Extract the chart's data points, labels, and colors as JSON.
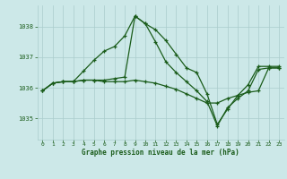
{
  "bg_color": "#cce8e8",
  "grid_color": "#aacccc",
  "line_color": "#1a5c1a",
  "title": "Graphe pression niveau de la mer (hPa)",
  "title_color": "#1a5c1a",
  "ylim": [
    1034.3,
    1038.7
  ],
  "yticks": [
    1035,
    1036,
    1037,
    1038
  ],
  "xticks": [
    0,
    1,
    2,
    3,
    4,
    5,
    6,
    7,
    8,
    9,
    10,
    11,
    12,
    13,
    14,
    15,
    16,
    17,
    18,
    19,
    20,
    21,
    22,
    23
  ],
  "series1_x": [
    0,
    1,
    2,
    3,
    4,
    5,
    6,
    7,
    8,
    9,
    10,
    11,
    12,
    13,
    14,
    15,
    16,
    17,
    18,
    19,
    20,
    21,
    22,
    23
  ],
  "series1_y": [
    1035.9,
    1036.15,
    1036.2,
    1036.2,
    1036.55,
    1036.9,
    1037.2,
    1037.35,
    1037.7,
    1038.35,
    1038.1,
    1037.9,
    1037.55,
    1037.1,
    1036.65,
    1036.5,
    1035.8,
    1034.8,
    1035.3,
    1035.75,
    1036.1,
    1036.7,
    1036.7,
    1036.7
  ],
  "series2_x": [
    0,
    1,
    2,
    3,
    4,
    5,
    6,
    7,
    8,
    9,
    10,
    11,
    12,
    13,
    14,
    15,
    16,
    17,
    18,
    19,
    20,
    21,
    22,
    23
  ],
  "series2_y": [
    1035.9,
    1036.15,
    1036.2,
    1036.2,
    1036.25,
    1036.25,
    1036.25,
    1036.3,
    1036.35,
    1038.35,
    1038.1,
    1037.5,
    1036.85,
    1036.5,
    1036.2,
    1035.9,
    1035.55,
    1034.75,
    1035.35,
    1035.65,
    1035.9,
    1036.6,
    1036.65,
    1036.65
  ],
  "series3_x": [
    0,
    1,
    2,
    3,
    4,
    5,
    6,
    7,
    8,
    9,
    10,
    11,
    12,
    13,
    14,
    15,
    16,
    17,
    18,
    19,
    20,
    21,
    22,
    23
  ],
  "series3_y": [
    1035.9,
    1036.15,
    1036.2,
    1036.2,
    1036.25,
    1036.25,
    1036.2,
    1036.2,
    1036.2,
    1036.25,
    1036.2,
    1036.15,
    1036.05,
    1035.95,
    1035.8,
    1035.65,
    1035.5,
    1035.5,
    1035.65,
    1035.75,
    1035.85,
    1035.9,
    1036.65,
    1036.65
  ]
}
